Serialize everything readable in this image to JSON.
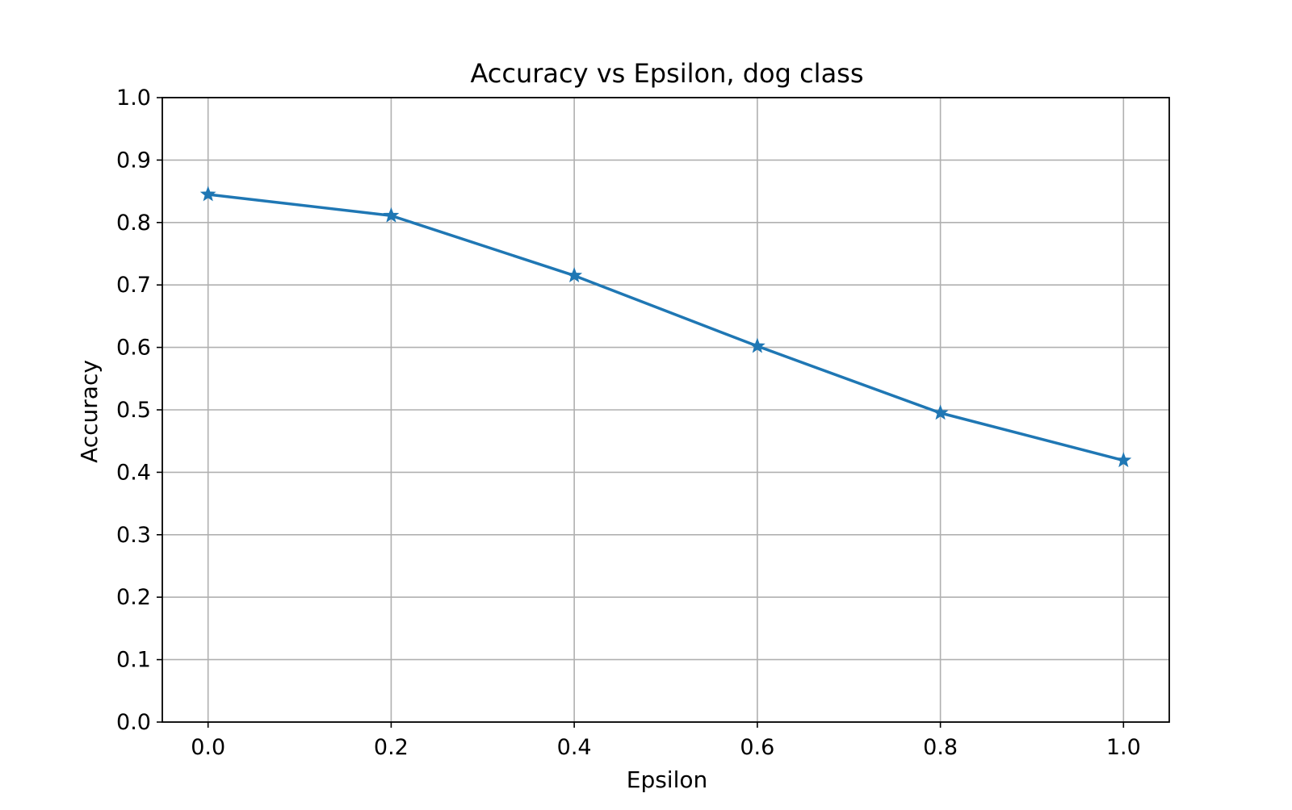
{
  "chart_data": {
    "type": "line",
    "title": "Accuracy vs Epsilon, dog class",
    "xlabel": "Epsilon",
    "ylabel": "Accuracy",
    "x": [
      0.0,
      0.2,
      0.4,
      0.6,
      0.8,
      1.0
    ],
    "series": [
      {
        "values": [
          0.845,
          0.811,
          0.715,
          0.602,
          0.495,
          0.419
        ],
        "color": "#1f77b4",
        "marker": "star"
      }
    ],
    "xlim": [
      -0.05,
      1.05
    ],
    "ylim": [
      0.0,
      1.0
    ],
    "xticks": [
      "0.0",
      "0.2",
      "0.4",
      "0.6",
      "0.8",
      "1.0"
    ],
    "yticks": [
      "0.0",
      "0.1",
      "0.2",
      "0.3",
      "0.4",
      "0.5",
      "0.6",
      "0.7",
      "0.8",
      "0.9",
      "1.0"
    ],
    "grid": true,
    "legend": null
  }
}
